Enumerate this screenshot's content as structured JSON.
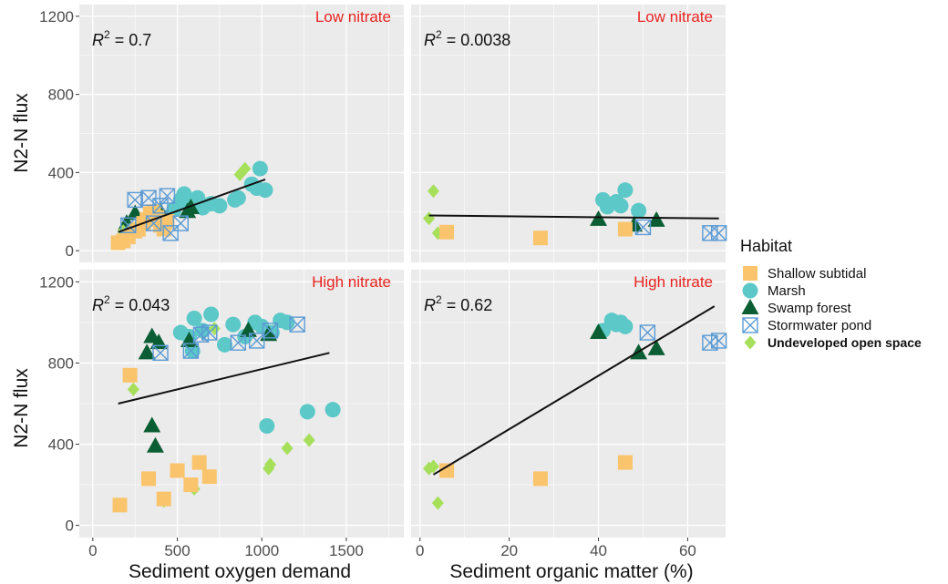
{
  "chart_data": {
    "type": "scatter",
    "ylabel": "N2-N flux",
    "colors": {
      "Shallow subtidal": "#f9c46b",
      "Marsh": "#5cc8c8",
      "Swamp forest": "#0b5e33",
      "Stormwater pond": "#5b9bd5",
      "Undeveloped open space": "#a6e05a",
      "nitrate_label": "#e8231f",
      "panel_bg": "#ebebeb"
    },
    "legend": {
      "title": "Habitat",
      "entries": [
        {
          "name": "Shallow subtidal",
          "marker": "square"
        },
        {
          "name": "Marsh",
          "marker": "circle"
        },
        {
          "name": "Swamp forest",
          "marker": "triangle"
        },
        {
          "name": "Stormwater pond",
          "marker": "square-x"
        },
        {
          "name": "Undeveloped open space",
          "marker": "diamond"
        }
      ]
    },
    "panels": [
      {
        "id": "low-som",
        "label": "Low nitrate",
        "r2": "0.7",
        "xlabel": "Sediment oxygen demand",
        "xlim": [
          0,
          1800
        ],
        "ylim": [
          0,
          1200
        ],
        "xticks": [
          0,
          500,
          1000,
          1500
        ],
        "yticks": [
          0,
          400,
          800,
          1200
        ],
        "trend": [
          [
            150,
            95
          ],
          [
            1020,
            365
          ]
        ],
        "points": {
          "Shallow subtidal": [
            [
              150,
              40
            ],
            [
              180,
              50
            ],
            [
              210,
              70
            ],
            [
              250,
              100
            ],
            [
              270,
              110
            ],
            [
              300,
              140
            ],
            [
              320,
              160
            ],
            [
              340,
              190
            ],
            [
              360,
              200
            ],
            [
              380,
              170
            ],
            [
              400,
              130
            ],
            [
              420,
              110
            ],
            [
              440,
              150
            ]
          ],
          "Marsh": [
            [
              480,
              210
            ],
            [
              520,
              260
            ],
            [
              540,
              290
            ],
            [
              560,
              240
            ],
            [
              600,
              260
            ],
            [
              620,
              270
            ],
            [
              650,
              220
            ],
            [
              700,
              240
            ],
            [
              750,
              230
            ],
            [
              840,
              260
            ],
            [
              860,
              270
            ],
            [
              940,
              340
            ],
            [
              970,
              320
            ],
            [
              990,
              420
            ],
            [
              1020,
              310
            ]
          ],
          "Swamp forest": [
            [
              200,
              140
            ],
            [
              250,
              190
            ],
            [
              350,
              180
            ],
            [
              400,
              200
            ],
            [
              430,
              150
            ],
            [
              560,
              200
            ],
            [
              580,
              220
            ]
          ],
          "Stormwater pond": [
            [
              210,
              130
            ],
            [
              250,
              260
            ],
            [
              330,
              270
            ],
            [
              360,
              140
            ],
            [
              400,
              230
            ],
            [
              440,
              280
            ],
            [
              460,
              90
            ],
            [
              520,
              140
            ]
          ],
          "Undeveloped open space": [
            [
              180,
              100
            ],
            [
              870,
              390
            ],
            [
              900,
              420
            ]
          ]
        }
      },
      {
        "id": "low-som-pct",
        "label": "Low nitrate",
        "r2": "0.0038",
        "xlabel": "Sediment organic matter (%)",
        "xlim": [
          0,
          68
        ],
        "ylim": [
          0,
          1200
        ],
        "xticks": [
          0,
          20,
          40,
          60
        ],
        "yticks": [
          0,
          400,
          800,
          1200
        ],
        "trend": [
          [
            2,
            180
          ],
          [
            67,
            165
          ]
        ],
        "points": {
          "Shallow subtidal": [
            [
              6,
              95
            ],
            [
              27,
              65
            ],
            [
              46,
              110
            ]
          ],
          "Marsh": [
            [
              41,
              260
            ],
            [
              42,
              225
            ],
            [
              44,
              250
            ],
            [
              45,
              230
            ],
            [
              46,
              310
            ],
            [
              49,
              205
            ]
          ],
          "Swamp forest": [
            [
              40,
              160
            ],
            [
              48,
              130
            ],
            [
              53,
              155
            ]
          ],
          "Stormwater pond": [
            [
              50,
              120
            ],
            [
              65,
              90
            ],
            [
              67,
              90
            ]
          ],
          "Undeveloped open space": [
            [
              2,
              165
            ],
            [
              3,
              305
            ],
            [
              4,
              90
            ]
          ]
        }
      },
      {
        "id": "high-som",
        "label": "High nitrate",
        "r2": "0.043",
        "xlabel": "Sediment oxygen demand",
        "xlim": [
          0,
          1800
        ],
        "ylim": [
          0,
          1300
        ],
        "xticks": [
          0,
          500,
          1000,
          1500
        ],
        "yticks": [
          0,
          400,
          800,
          1200
        ],
        "trend": [
          [
            150,
            600
          ],
          [
            1400,
            850
          ]
        ],
        "points": {
          "Shallow subtidal": [
            [
              160,
              100
            ],
            [
              220,
              740
            ],
            [
              330,
              230
            ],
            [
              420,
              130
            ],
            [
              500,
              270
            ],
            [
              580,
              200
            ],
            [
              630,
              310
            ],
            [
              690,
              240
            ]
          ],
          "Marsh": [
            [
              520,
              950
            ],
            [
              570,
              930
            ],
            [
              590,
              860
            ],
            [
              600,
              1020
            ],
            [
              650,
              960
            ],
            [
              700,
              1040
            ],
            [
              780,
              890
            ],
            [
              830,
              990
            ],
            [
              900,
              930
            ],
            [
              960,
              1000
            ],
            [
              1000,
              980
            ],
            [
              1060,
              950
            ],
            [
              1110,
              1010
            ],
            [
              1150,
              1000
            ],
            [
              1030,
              490
            ],
            [
              1270,
              560
            ],
            [
              1420,
              570
            ]
          ],
          "Swamp forest": [
            [
              320,
              850
            ],
            [
              350,
              930
            ],
            [
              390,
              900
            ],
            [
              570,
              910
            ],
            [
              920,
              960
            ],
            [
              1040,
              940
            ],
            [
              350,
              490
            ],
            [
              370,
              390
            ]
          ],
          "Stormwater pond": [
            [
              400,
              850
            ],
            [
              580,
              860
            ],
            [
              640,
              940
            ],
            [
              690,
              950
            ],
            [
              860,
              900
            ],
            [
              970,
              910
            ],
            [
              1050,
              960
            ],
            [
              1210,
              990
            ]
          ],
          "Undeveloped open space": [
            [
              240,
              670
            ],
            [
              420,
              120
            ],
            [
              600,
              180
            ],
            [
              720,
              970
            ],
            [
              1040,
              280
            ],
            [
              1050,
              300
            ],
            [
              1150,
              380
            ],
            [
              1280,
              420
            ]
          ]
        }
      },
      {
        "id": "high-som-pct",
        "label": "High nitrate",
        "r2": "0.62",
        "xlabel": "Sediment organic matter (%)",
        "xlim": [
          0,
          68
        ],
        "ylim": [
          0,
          1300
        ],
        "xticks": [
          0,
          20,
          40,
          60
        ],
        "yticks": [
          0,
          400,
          800,
          1200
        ],
        "trend": [
          [
            3,
            250
          ],
          [
            66,
            1080
          ]
        ],
        "points": {
          "Shallow subtidal": [
            [
              6,
              270
            ],
            [
              27,
              230
            ],
            [
              46,
              310
            ]
          ],
          "Marsh": [
            [
              41,
              960
            ],
            [
              43,
              1010
            ],
            [
              44,
              990
            ],
            [
              45,
              1000
            ],
            [
              46,
              980
            ]
          ],
          "Swamp forest": [
            [
              40,
              950
            ],
            [
              49,
              850
            ],
            [
              53,
              870
            ]
          ],
          "Stormwater pond": [
            [
              51,
              950
            ],
            [
              65,
              900
            ],
            [
              67,
              910
            ]
          ],
          "Undeveloped open space": [
            [
              2,
              280
            ],
            [
              3,
              290
            ],
            [
              4,
              110
            ]
          ]
        }
      }
    ]
  }
}
